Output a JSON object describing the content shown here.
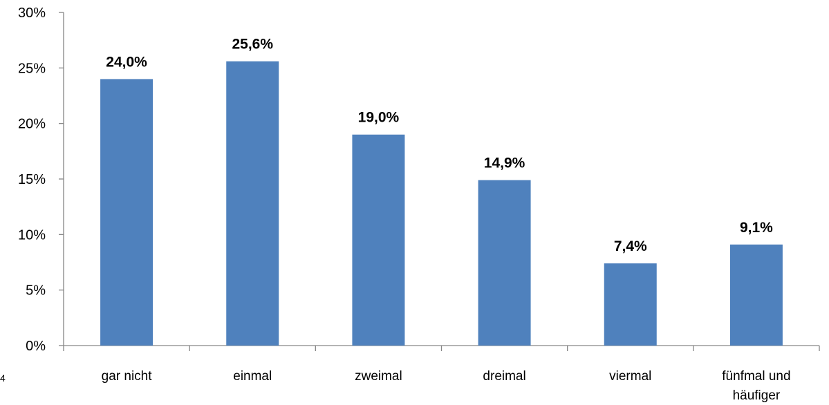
{
  "chart_data": {
    "type": "bar",
    "categories": [
      "gar nicht",
      "einmal",
      "zweimal",
      "dreimal",
      "viermal",
      "fünfmal und häufiger"
    ],
    "category_lines": [
      [
        "gar nicht"
      ],
      [
        "einmal"
      ],
      [
        "zweimal"
      ],
      [
        "dreimal"
      ],
      [
        "viermal"
      ],
      [
        "fünfmal und",
        "häufiger"
      ]
    ],
    "values": [
      24.0,
      25.6,
      19.0,
      14.9,
      7.4,
      9.1
    ],
    "data_labels": [
      "24,0%",
      "25,6%",
      "19,0%",
      "14,9%",
      "7,4%",
      "9,1%"
    ],
    "y_ticks": [
      0,
      5,
      10,
      15,
      20,
      25,
      30
    ],
    "y_tick_labels": [
      "0%",
      "5%",
      "10%",
      "15%",
      "20%",
      "25%",
      "30%"
    ],
    "ylim": [
      0,
      30
    ],
    "title": "",
    "xlabel": "",
    "ylabel": "",
    "grid": false,
    "legend": "none",
    "bar_color": "#4f81bd",
    "axis_color": "#868686"
  },
  "corner_mark": "4"
}
